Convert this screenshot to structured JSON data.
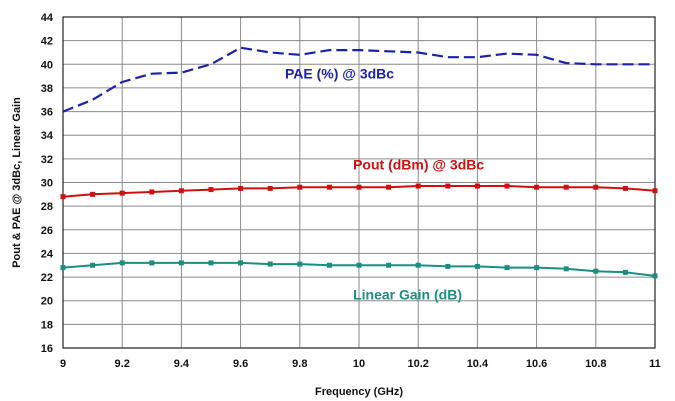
{
  "chart_data": {
    "type": "line",
    "xlabel": "Frequency (GHz)",
    "ylabel": "Pout  & PAE @ 3dBc, Linear Gain",
    "xlim": [
      9,
      11
    ],
    "ylim": [
      16,
      44
    ],
    "xticks": [
      9,
      9.2,
      9.4,
      9.6,
      9.8,
      10,
      10.2,
      10.4,
      10.6,
      10.8,
      11
    ],
    "xtick_labels": [
      "9",
      "9.2",
      "9.4",
      "9.6",
      "9.8",
      "10",
      "10.2",
      "10.4",
      "10.6",
      "10.8",
      "11"
    ],
    "yticks": [
      16,
      18,
      20,
      22,
      24,
      26,
      28,
      30,
      32,
      34,
      36,
      38,
      40,
      42,
      44
    ],
    "grid": true,
    "series": [
      {
        "name": "PAE (%) @ 3dBc",
        "color": "#1c22a8",
        "style": "dashed",
        "x": [
          9,
          9.1,
          9.2,
          9.3,
          9.4,
          9.5,
          9.6,
          9.7,
          9.8,
          9.9,
          10,
          10.1,
          10.2,
          10.3,
          10.4,
          10.5,
          10.6,
          10.7,
          10.8,
          10.9,
          11
        ],
        "y": [
          36.0,
          37.0,
          38.5,
          39.2,
          39.3,
          40.0,
          41.4,
          41.0,
          40.8,
          41.2,
          41.2,
          41.1,
          41.0,
          40.6,
          40.6,
          40.9,
          40.8,
          40.1,
          40.0,
          40.0,
          40.0
        ]
      },
      {
        "name": "Pout (dBm) @ 3dBc",
        "color": "#cc1111",
        "style": "solid",
        "x": [
          9,
          9.1,
          9.2,
          9.3,
          9.4,
          9.5,
          9.6,
          9.7,
          9.8,
          9.9,
          10,
          10.1,
          10.2,
          10.3,
          10.4,
          10.5,
          10.6,
          10.7,
          10.8,
          10.9,
          11
        ],
        "y": [
          28.8,
          29.0,
          29.1,
          29.2,
          29.3,
          29.4,
          29.5,
          29.5,
          29.6,
          29.6,
          29.6,
          29.6,
          29.7,
          29.7,
          29.7,
          29.7,
          29.6,
          29.6,
          29.6,
          29.5,
          29.3
        ]
      },
      {
        "name": "Linear Gain (dB)",
        "color": "#1b8e82",
        "style": "solid",
        "x": [
          9,
          9.1,
          9.2,
          9.3,
          9.4,
          9.5,
          9.6,
          9.7,
          9.8,
          9.9,
          10,
          10.1,
          10.2,
          10.3,
          10.4,
          10.5,
          10.6,
          10.7,
          10.8,
          10.9,
          11
        ],
        "y": [
          22.8,
          23.0,
          23.2,
          23.2,
          23.2,
          23.2,
          23.2,
          23.1,
          23.1,
          23.0,
          23.0,
          23.0,
          23.0,
          22.9,
          22.9,
          22.8,
          22.8,
          22.7,
          22.5,
          22.4,
          22.1
        ]
      }
    ],
    "annotations": [
      {
        "text": "PAE (%) @ 3dBc",
        "color": "#1c22a8",
        "x": 9.75,
        "y": 38.8
      },
      {
        "text": "Pout (dBm) @ 3dBc",
        "color": "#cc1111",
        "x": 9.98,
        "y": 31.1
      },
      {
        "text": "Linear Gain (dB)",
        "color": "#1b8e82",
        "x": 9.98,
        "y": 20.1
      }
    ]
  }
}
